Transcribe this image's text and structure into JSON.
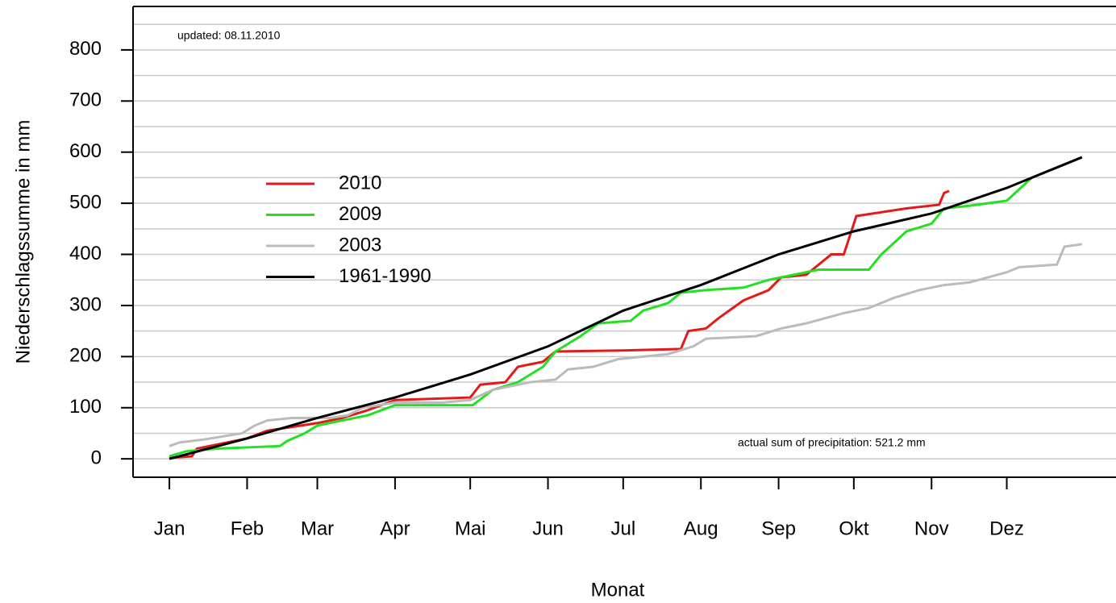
{
  "chart_data": {
    "type": "line",
    "y_label": "Niederschlagssumme in mm",
    "x_label": "Monat",
    "annotations": [
      "updated: 08.11.2010",
      "actual sum of precipitation: 521.2 mm"
    ],
    "xlim": [
      -13.5,
      376
    ],
    "xticks": [
      {
        "value": 1,
        "label": "Jan"
      },
      {
        "value": 32,
        "label": "Feb"
      },
      {
        "value": 60,
        "label": "Mar"
      },
      {
        "value": 91,
        "label": "Apr"
      },
      {
        "value": 121,
        "label": "Mai"
      },
      {
        "value": 152,
        "label": "Jun"
      },
      {
        "value": 182,
        "label": "Jul"
      },
      {
        "value": 213,
        "label": "Aug"
      },
      {
        "value": 244,
        "label": "Sep"
      },
      {
        "value": 274,
        "label": "Okt"
      },
      {
        "value": 305,
        "label": "Nov"
      },
      {
        "value": 335,
        "label": "Dez"
      }
    ],
    "ylim": [
      -36,
      885
    ],
    "yticks": [
      0,
      100,
      200,
      300,
      400,
      500,
      600,
      700,
      800
    ],
    "ygrid": [
      0,
      50,
      100,
      150,
      200,
      250,
      300,
      350,
      400,
      450,
      500,
      550,
      600,
      650,
      700,
      750,
      800,
      850
    ],
    "legend": "upper left",
    "series": [
      {
        "name": "2010",
        "color": "#e41a1a",
        "x": [
          1,
          10,
          12,
          32,
          40,
          60,
          70,
          80,
          91,
          121,
          125,
          135,
          140,
          150,
          155,
          182,
          205,
          208,
          215,
          220,
          230,
          240,
          245,
          255,
          260,
          265,
          270,
          275,
          295,
          308,
          310,
          312
        ],
        "values": [
          2,
          5,
          20,
          40,
          55,
          70,
          80,
          95,
          115,
          120,
          145,
          150,
          180,
          190,
          210,
          212,
          215,
          250,
          255,
          275,
          310,
          330,
          355,
          360,
          380,
          400,
          400,
          475,
          490,
          497,
          520,
          524
        ]
      },
      {
        "name": "2009",
        "color": "#22e022",
        "x": [
          1,
          8,
          20,
          45,
          48,
          55,
          60,
          75,
          80,
          91,
          100,
          122,
          130,
          140,
          150,
          155,
          165,
          172,
          185,
          190,
          200,
          205,
          215,
          230,
          240,
          250,
          260,
          280,
          285,
          295,
          305,
          310,
          320,
          335,
          345,
          365
        ],
        "values": [
          5,
          15,
          20,
          25,
          35,
          50,
          65,
          80,
          85,
          105,
          105,
          105,
          135,
          150,
          180,
          210,
          240,
          265,
          270,
          290,
          305,
          325,
          330,
          335,
          350,
          360,
          370,
          370,
          400,
          445,
          460,
          490,
          495,
          505,
          550,
          590
        ]
      },
      {
        "name": "2003",
        "color": "#bbbbbb",
        "x": [
          1,
          5,
          15,
          30,
          35,
          40,
          50,
          65,
          72,
          78,
          91,
          110,
          121,
          130,
          145,
          155,
          160,
          170,
          180,
          200,
          210,
          215,
          235,
          245,
          255,
          270,
          280,
          290,
          300,
          310,
          320,
          335,
          340,
          355,
          358,
          365
        ],
        "values": [
          25,
          32,
          38,
          50,
          65,
          75,
          80,
          80,
          85,
          100,
          110,
          110,
          115,
          135,
          150,
          155,
          175,
          180,
          195,
          205,
          220,
          235,
          240,
          255,
          265,
          285,
          295,
          315,
          330,
          340,
          345,
          365,
          375,
          380,
          415,
          420
        ]
      },
      {
        "name": "1961-1990",
        "color": "#000000",
        "x": [
          1,
          32,
          60,
          91,
          121,
          152,
          182,
          213,
          244,
          274,
          305,
          335,
          365
        ],
        "values": [
          0,
          40,
          80,
          120,
          165,
          220,
          290,
          340,
          400,
          445,
          480,
          530,
          590
        ]
      }
    ]
  }
}
